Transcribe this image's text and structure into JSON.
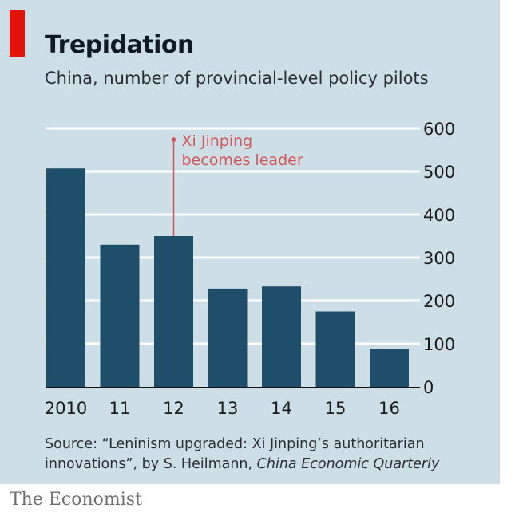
{
  "chart_data": {
    "type": "bar",
    "title": "Trepidation",
    "subtitle": "China, number of provincial-level policy pilots",
    "categories": [
      "2010",
      "11",
      "12",
      "13",
      "14",
      "15",
      "16"
    ],
    "values": [
      507,
      330,
      350,
      228,
      233,
      175,
      87
    ],
    "ylim": [
      0,
      600
    ],
    "yticks": [
      0,
      100,
      200,
      300,
      400,
      500,
      600
    ],
    "xlabel": "",
    "ylabel": "",
    "grid": true,
    "y_axis_side": "right",
    "annotation": {
      "category": "12",
      "lines": [
        "Xi Jinping",
        "becomes leader"
      ],
      "color": "#d0575a"
    },
    "colors": {
      "bar": "#1f4e6b",
      "background": "#cedee7",
      "gridline": "#ffffff",
      "accent": "#e3120b"
    }
  },
  "footer": {
    "source_prefix": "Source: “Leninism upgraded: Xi Jinping’s authoritarian innovations”, by S. Heilmann, ",
    "source_journal": "China Economic Quarterly",
    "publisher": "The Economist"
  }
}
